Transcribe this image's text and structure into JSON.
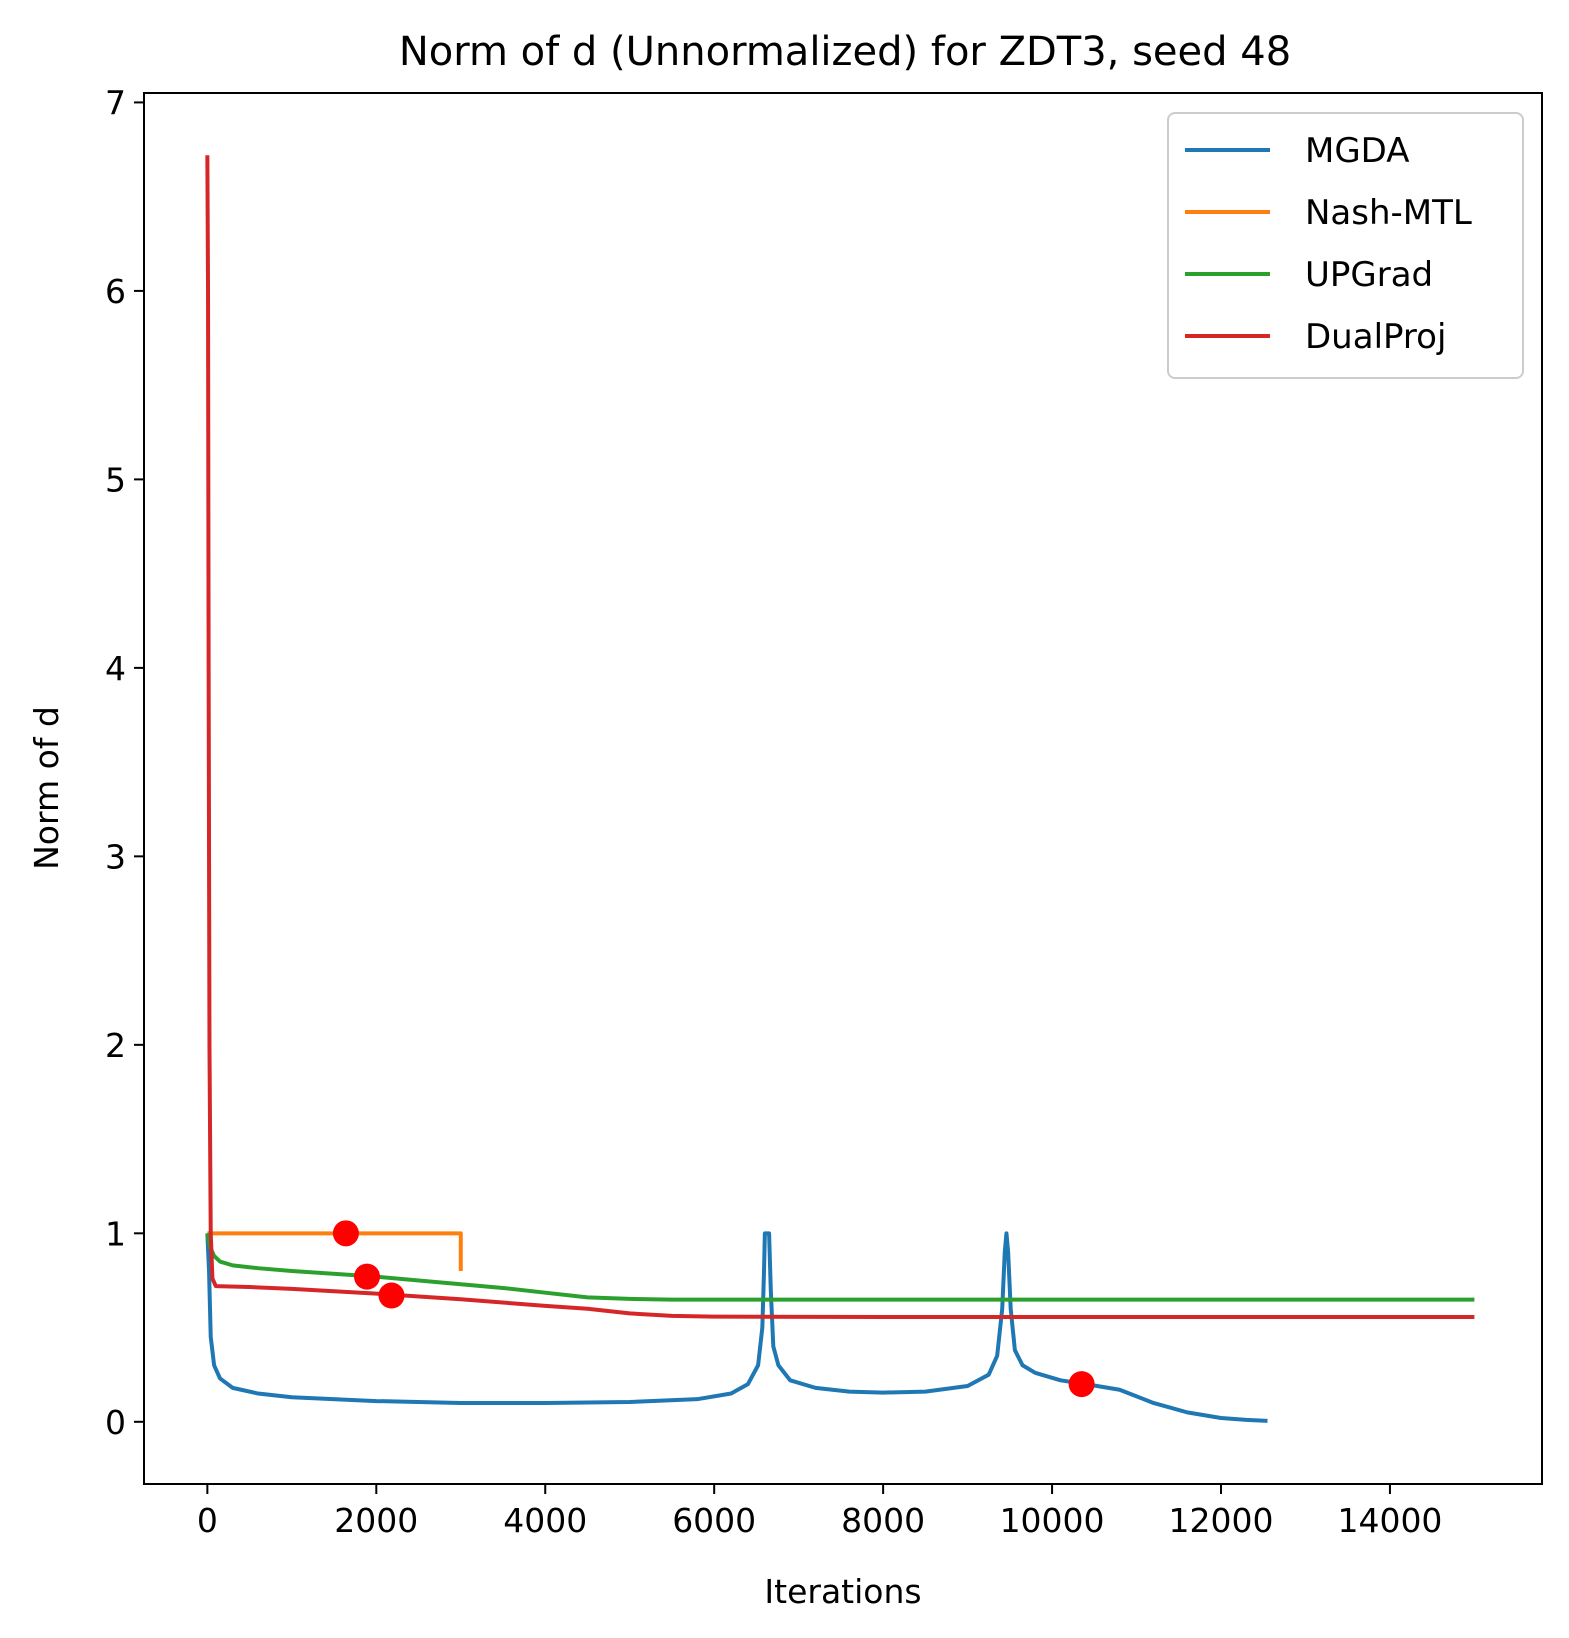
{
  "chart_data": {
    "type": "line",
    "title": "Norm of d (Unnormalized) for ZDT3, seed 48",
    "xlabel": "Iterations",
    "ylabel": "Norm of d",
    "xlim": [
      -750,
      15800
    ],
    "ylim": [
      -0.33,
      7.05
    ],
    "x_ticks": [
      0,
      2000,
      4000,
      6000,
      8000,
      10000,
      12000,
      14000
    ],
    "x_tick_labels": [
      "0",
      "2000",
      "4000",
      "6000",
      "8000",
      "10000",
      "12000",
      "14000"
    ],
    "y_ticks": [
      0,
      1,
      2,
      3,
      4,
      5,
      6,
      7
    ],
    "y_tick_labels": [
      "0",
      "1",
      "2",
      "3",
      "4",
      "5",
      "6",
      "7"
    ],
    "grid": false,
    "legend_position": "top-right",
    "series": [
      {
        "name": "MGDA",
        "color": "#1f77b4",
        "points": [
          [
            0,
            1.0
          ],
          [
            20,
            0.8
          ],
          [
            40,
            0.45
          ],
          [
            80,
            0.3
          ],
          [
            150,
            0.23
          ],
          [
            300,
            0.18
          ],
          [
            600,
            0.15
          ],
          [
            1000,
            0.13
          ],
          [
            2000,
            0.11
          ],
          [
            3000,
            0.1
          ],
          [
            4000,
            0.1
          ],
          [
            5000,
            0.105
          ],
          [
            5800,
            0.12
          ],
          [
            6200,
            0.15
          ],
          [
            6400,
            0.2
          ],
          [
            6520,
            0.3
          ],
          [
            6570,
            0.5
          ],
          [
            6590,
            0.8
          ],
          [
            6600,
            1.0
          ],
          [
            6640,
            1.0
          ],
          [
            6650,
            1.0
          ],
          [
            6670,
            0.7
          ],
          [
            6700,
            0.4
          ],
          [
            6760,
            0.3
          ],
          [
            6900,
            0.22
          ],
          [
            7200,
            0.18
          ],
          [
            7600,
            0.16
          ],
          [
            8000,
            0.155
          ],
          [
            8500,
            0.16
          ],
          [
            9000,
            0.19
          ],
          [
            9250,
            0.25
          ],
          [
            9350,
            0.35
          ],
          [
            9410,
            0.6
          ],
          [
            9440,
            0.9
          ],
          [
            9460,
            1.0
          ],
          [
            9480,
            0.9
          ],
          [
            9510,
            0.6
          ],
          [
            9560,
            0.38
          ],
          [
            9650,
            0.3
          ],
          [
            9800,
            0.26
          ],
          [
            10100,
            0.22
          ],
          [
            10400,
            0.2
          ],
          [
            10800,
            0.17
          ],
          [
            11200,
            0.1
          ],
          [
            11600,
            0.05
          ],
          [
            12000,
            0.02
          ],
          [
            12300,
            0.01
          ],
          [
            12550,
            0.005
          ]
        ]
      },
      {
        "name": "Nash-MTL",
        "color": "#ff7f0e",
        "points": [
          [
            0,
            1.0
          ],
          [
            3000,
            1.0
          ],
          [
            3000,
            0.8
          ]
        ]
      },
      {
        "name": "UPGrad",
        "color": "#2ca02c",
        "points": [
          [
            0,
            1.0
          ],
          [
            30,
            0.93
          ],
          [
            80,
            0.88
          ],
          [
            150,
            0.85
          ],
          [
            300,
            0.83
          ],
          [
            600,
            0.815
          ],
          [
            1000,
            0.8
          ],
          [
            2000,
            0.77
          ],
          [
            3000,
            0.73
          ],
          [
            3500,
            0.71
          ],
          [
            4000,
            0.685
          ],
          [
            4500,
            0.66
          ],
          [
            5000,
            0.652
          ],
          [
            5500,
            0.648
          ],
          [
            6000,
            0.648
          ],
          [
            8000,
            0.648
          ],
          [
            10000,
            0.648
          ],
          [
            12000,
            0.648
          ],
          [
            15000,
            0.648
          ]
        ]
      },
      {
        "name": "DualProj",
        "color": "#d62728",
        "points": [
          [
            0,
            6.72
          ],
          [
            8,
            6.0
          ],
          [
            15,
            4.0
          ],
          [
            25,
            2.0
          ],
          [
            40,
            1.0
          ],
          [
            60,
            0.76
          ],
          [
            100,
            0.72
          ],
          [
            500,
            0.715
          ],
          [
            1000,
            0.705
          ],
          [
            2000,
            0.68
          ],
          [
            3000,
            0.65
          ],
          [
            4000,
            0.615
          ],
          [
            4500,
            0.6
          ],
          [
            5000,
            0.575
          ],
          [
            5500,
            0.562
          ],
          [
            6000,
            0.558
          ],
          [
            8000,
            0.556
          ],
          [
            10000,
            0.556
          ],
          [
            12000,
            0.556
          ],
          [
            15000,
            0.556
          ]
        ]
      }
    ],
    "markers": {
      "color": "#ff0000",
      "points": [
        [
          1640,
          1.0
        ],
        [
          1890,
          0.77
        ],
        [
          2180,
          0.67
        ],
        [
          10350,
          0.2
        ]
      ]
    }
  }
}
